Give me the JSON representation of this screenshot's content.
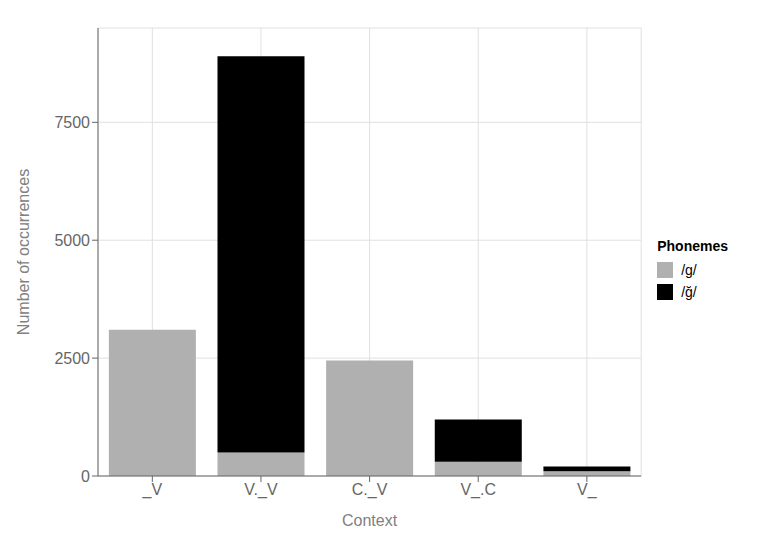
{
  "chart_data": {
    "type": "bar",
    "categories": [
      "_V",
      "V._V",
      "C._V",
      "V_.C",
      "V_"
    ],
    "series": [
      {
        "name": "/g/",
        "color": "#b0b0b0",
        "values": [
          3100,
          500,
          2450,
          300,
          100
        ]
      },
      {
        "name": "/ğ/",
        "color": "#000000",
        "values": [
          0,
          8400,
          0,
          900,
          100
        ]
      }
    ],
    "stacked": true,
    "xlabel": "Context",
    "ylabel": "Number of occurrences",
    "legend_title": "Phonemes",
    "legend": "right",
    "ylim": [
      0,
      9500
    ],
    "yticks": [
      0,
      2500,
      5000,
      7500
    ],
    "grid": true
  }
}
